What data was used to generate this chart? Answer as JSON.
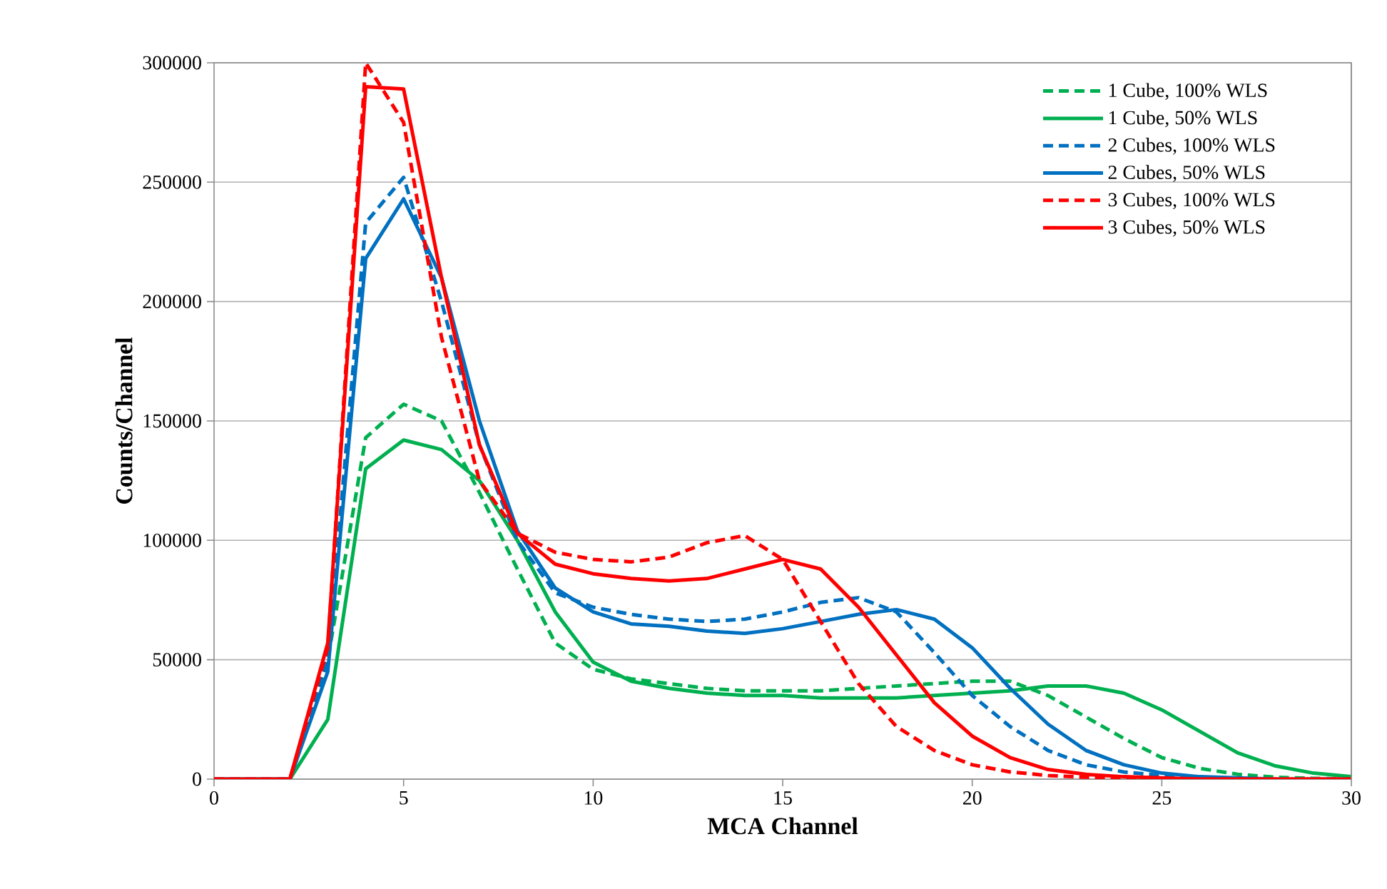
{
  "chart_data": {
    "type": "line",
    "xlabel": "MCA Channel",
    "ylabel": "Counts/Channel",
    "x": [
      0,
      1,
      2,
      3,
      4,
      5,
      6,
      7,
      8,
      9,
      10,
      11,
      12,
      13,
      14,
      15,
      16,
      17,
      18,
      19,
      20,
      21,
      22,
      23,
      24,
      25,
      26,
      27,
      28,
      29,
      30
    ],
    "xlim": [
      0,
      30
    ],
    "xticks": [
      0,
      5,
      10,
      15,
      20,
      25,
      30
    ],
    "ylim": [
      0,
      300000
    ],
    "yticks": [
      0,
      50000,
      100000,
      150000,
      200000,
      250000,
      300000
    ],
    "grid": "y",
    "legend": "top right",
    "marker": "none",
    "series": [
      {
        "name": "1 Cube, 100% WLS",
        "color": "#00b050",
        "line_style": "dashed",
        "values": [
          0,
          0,
          0,
          50000,
          143000,
          157000,
          150000,
          120000,
          88000,
          57000,
          46000,
          42000,
          40000,
          38000,
          37000,
          37000,
          37000,
          38000,
          39000,
          40000,
          41000,
          41000,
          35000,
          26000,
          17000,
          9000,
          4500,
          2000,
          800,
          300,
          100
        ]
      },
      {
        "name": "1 Cube, 50% WLS",
        "color": "#00b050",
        "line_style": "solid",
        "values": [
          0,
          0,
          0,
          25000,
          130000,
          142000,
          138000,
          125000,
          100000,
          70000,
          49000,
          41000,
          38000,
          36000,
          35000,
          35000,
          34000,
          34000,
          34000,
          35000,
          36000,
          37000,
          39000,
          39000,
          36000,
          29000,
          20000,
          11000,
          5500,
          2500,
          1000
        ]
      },
      {
        "name": "2 Cubes, 100% WLS",
        "color": "#0070c0",
        "line_style": "dashed",
        "values": [
          0,
          0,
          0,
          50000,
          233000,
          252000,
          200000,
          140000,
          100000,
          78000,
          72000,
          69000,
          67000,
          66000,
          67000,
          70000,
          74000,
          76000,
          70000,
          53000,
          35000,
          22000,
          12000,
          6000,
          3000,
          1500,
          600,
          200,
          0,
          0,
          0
        ]
      },
      {
        "name": "2 Cubes, 50% WLS",
        "color": "#0070c0",
        "line_style": "solid",
        "values": [
          0,
          0,
          0,
          45000,
          218000,
          243000,
          210000,
          150000,
          104000,
          80000,
          70000,
          65000,
          64000,
          62000,
          61000,
          63000,
          66000,
          69000,
          71000,
          67000,
          55000,
          38000,
          23000,
          12000,
          6000,
          2500,
          1000,
          500,
          0,
          null,
          null
        ]
      },
      {
        "name": "3 Cubes, 100% WLS",
        "color": "#ff0000",
        "line_style": "dashed",
        "values": [
          0,
          0,
          0,
          55000,
          300000,
          275000,
          185000,
          125000,
          103000,
          95000,
          92000,
          91000,
          93000,
          99000,
          102000,
          92000,
          66000,
          40000,
          22000,
          12000,
          6000,
          3000,
          1500,
          800,
          300,
          0,
          0,
          0,
          0,
          0,
          0
        ]
      },
      {
        "name": "3 Cubes, 50% WLS",
        "color": "#ff0000",
        "line_style": "solid",
        "values": [
          0,
          0,
          0,
          57000,
          290000,
          289000,
          210000,
          140000,
          103000,
          90000,
          86000,
          84000,
          83000,
          84000,
          88000,
          92000,
          88000,
          72000,
          52000,
          32000,
          18000,
          9000,
          4000,
          2000,
          1000,
          500,
          0,
          0,
          0,
          0,
          0
        ]
      }
    ]
  }
}
